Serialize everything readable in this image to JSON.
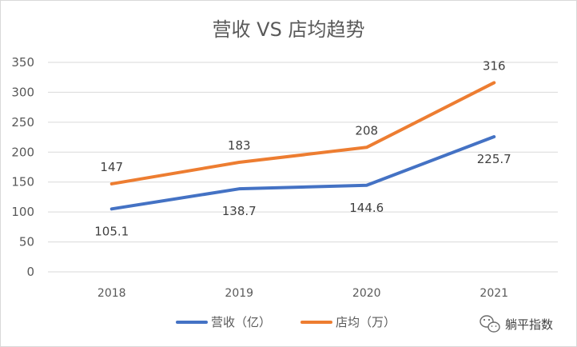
{
  "chart_data": {
    "type": "line",
    "title": "营收 VS 店均趋势",
    "xlabel": "",
    "ylabel": "",
    "categories": [
      "2018",
      "2019",
      "2020",
      "2021"
    ],
    "ylim": [
      0,
      350
    ],
    "yticks": [
      0,
      50,
      100,
      150,
      200,
      250,
      300,
      350
    ],
    "grid": true,
    "legend": "bottom",
    "series": [
      {
        "name": "营收（亿）",
        "values": [
          105.1,
          138.7,
          144.6,
          225.7
        ],
        "labels": [
          "105.1",
          "138.7",
          "144.6",
          "225.7"
        ],
        "color": "#4472c4"
      },
      {
        "name": "店均（万）",
        "values": [
          147,
          183,
          208,
          316
        ],
        "labels": [
          "147",
          "183",
          "208",
          "316"
        ],
        "color": "#ed7d31"
      }
    ]
  },
  "watermark": {
    "text": "躺平指数",
    "icon": "wechat-icon"
  }
}
